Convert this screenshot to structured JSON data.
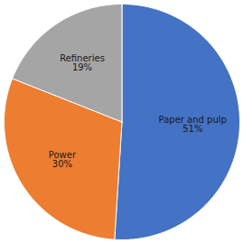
{
  "chart_data": {
    "type": "pie",
    "categories": [
      "Paper and pulp",
      "Power",
      "Refineries"
    ],
    "values": [
      51,
      30,
      19
    ],
    "value_labels": [
      "51%",
      "30%",
      "19%"
    ],
    "colors": [
      "#4472C4",
      "#ED7D31",
      "#A5A5A5"
    ],
    "data_labels": true
  }
}
